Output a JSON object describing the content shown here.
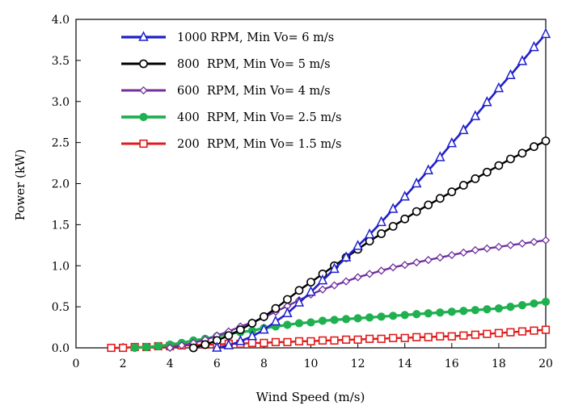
{
  "chart_data": {
    "type": "line",
    "xlabel": "Wind Speed (m/s)",
    "ylabel": "Power  (kW)",
    "xlim": [
      0,
      20
    ],
    "ylim": [
      0,
      4.0
    ],
    "x_ticks": [
      0,
      2,
      4,
      6,
      8,
      10,
      12,
      14,
      16,
      18,
      20
    ],
    "y_ticks": [
      0.0,
      0.5,
      1.0,
      1.5,
      2.0,
      2.5,
      3.0,
      3.5,
      4.0
    ],
    "x_tick_labels": [
      "0",
      "2",
      "4",
      "6",
      "8",
      "10",
      "12",
      "14",
      "16",
      "18",
      "20"
    ],
    "y_tick_labels": [
      "0.0",
      "0.5",
      "1.0",
      "1.5",
      "2.0",
      "2.5",
      "3.0",
      "3.5",
      "4.0"
    ],
    "grid": false,
    "legend_position": "top-left",
    "series": [
      {
        "name": "1000 RPM, Min Vo= 6 m/s",
        "color": "#1f1fcc",
        "marker": "triangle-open",
        "x": [
          6,
          6.5,
          7,
          7.5,
          8,
          8.5,
          9,
          9.5,
          10,
          10.5,
          11,
          11.5,
          12,
          12.5,
          13,
          13.5,
          14,
          14.5,
          15,
          15.5,
          16,
          16.5,
          17,
          17.5,
          18,
          18.5,
          19,
          19.5,
          20
        ],
        "y": [
          0.0,
          0.03,
          0.08,
          0.14,
          0.22,
          0.32,
          0.42,
          0.55,
          0.68,
          0.82,
          0.96,
          1.1,
          1.24,
          1.38,
          1.53,
          1.69,
          1.84,
          2.0,
          2.16,
          2.32,
          2.49,
          2.65,
          2.82,
          2.99,
          3.16,
          3.32,
          3.49,
          3.66,
          3.82
        ]
      },
      {
        "name": "800  RPM, Min Vo= 5 m/s",
        "color": "#000000",
        "marker": "circle-open",
        "x": [
          5,
          5.5,
          6,
          6.5,
          7,
          7.5,
          8,
          8.5,
          9,
          9.5,
          10,
          10.5,
          11,
          11.5,
          12,
          12.5,
          13,
          13.5,
          14,
          14.5,
          15,
          15.5,
          16,
          16.5,
          17,
          17.5,
          18,
          18.5,
          19,
          19.5,
          20
        ],
        "y": [
          0.0,
          0.04,
          0.09,
          0.15,
          0.22,
          0.3,
          0.38,
          0.48,
          0.59,
          0.7,
          0.8,
          0.9,
          1.0,
          1.1,
          1.2,
          1.3,
          1.39,
          1.48,
          1.57,
          1.66,
          1.74,
          1.82,
          1.9,
          1.98,
          2.06,
          2.14,
          2.22,
          2.3,
          2.37,
          2.45,
          2.52
        ]
      },
      {
        "name": "600  RPM, Min Vo= 4 m/s",
        "color": "#7030a0",
        "marker": "diamond-open",
        "x": [
          4,
          4.5,
          5,
          5.5,
          6,
          6.5,
          7,
          7.5,
          8,
          8.5,
          9,
          9.5,
          10,
          10.5,
          11,
          11.5,
          12,
          12.5,
          13,
          13.5,
          14,
          14.5,
          15,
          15.5,
          16,
          16.5,
          17,
          17.5,
          18,
          18.5,
          19,
          19.5,
          20
        ],
        "y": [
          0.0,
          0.03,
          0.06,
          0.1,
          0.15,
          0.2,
          0.26,
          0.31,
          0.37,
          0.44,
          0.51,
          0.58,
          0.65,
          0.71,
          0.76,
          0.81,
          0.86,
          0.9,
          0.94,
          0.98,
          1.01,
          1.04,
          1.07,
          1.1,
          1.13,
          1.16,
          1.19,
          1.21,
          1.23,
          1.25,
          1.27,
          1.29,
          1.31
        ]
      },
      {
        "name": "400  RPM, Min Vo= 2.5 m/s",
        "color": "#1fb050",
        "marker": "circle-filled",
        "x": [
          2.5,
          3,
          3.5,
          4,
          4.5,
          5,
          5.5,
          6,
          6.5,
          7,
          7.5,
          8,
          8.5,
          9,
          9.5,
          10,
          10.5,
          11,
          11.5,
          12,
          12.5,
          13,
          13.5,
          14,
          14.5,
          15,
          15.5,
          16,
          16.5,
          17,
          17.5,
          18,
          18.5,
          19,
          19.5,
          20
        ],
        "y": [
          0.0,
          0.01,
          0.02,
          0.04,
          0.06,
          0.09,
          0.11,
          0.14,
          0.17,
          0.19,
          0.21,
          0.24,
          0.26,
          0.28,
          0.3,
          0.31,
          0.33,
          0.34,
          0.35,
          0.36,
          0.37,
          0.38,
          0.39,
          0.4,
          0.41,
          0.42,
          0.43,
          0.44,
          0.45,
          0.46,
          0.47,
          0.48,
          0.5,
          0.52,
          0.54,
          0.56
        ]
      },
      {
        "name": "200  RPM, Min Vo= 1.5 m/s",
        "color": "#e01b1b",
        "marker": "square-open",
        "x": [
          1.5,
          2,
          2.5,
          3,
          3.5,
          4,
          4.5,
          5,
          5.5,
          6,
          6.5,
          7,
          7.5,
          8,
          8.5,
          9,
          9.5,
          10,
          10.5,
          11,
          11.5,
          12,
          12.5,
          13,
          13.5,
          14,
          14.5,
          15,
          15.5,
          16,
          16.5,
          17,
          17.5,
          18,
          18.5,
          19,
          19.5,
          20
        ],
        "y": [
          0.0,
          0.0,
          0.01,
          0.01,
          0.02,
          0.02,
          0.03,
          0.03,
          0.04,
          0.04,
          0.05,
          0.05,
          0.06,
          0.06,
          0.07,
          0.07,
          0.08,
          0.08,
          0.09,
          0.09,
          0.1,
          0.1,
          0.11,
          0.11,
          0.12,
          0.12,
          0.13,
          0.13,
          0.14,
          0.14,
          0.15,
          0.16,
          0.17,
          0.18,
          0.19,
          0.2,
          0.21,
          0.22
        ]
      }
    ]
  }
}
